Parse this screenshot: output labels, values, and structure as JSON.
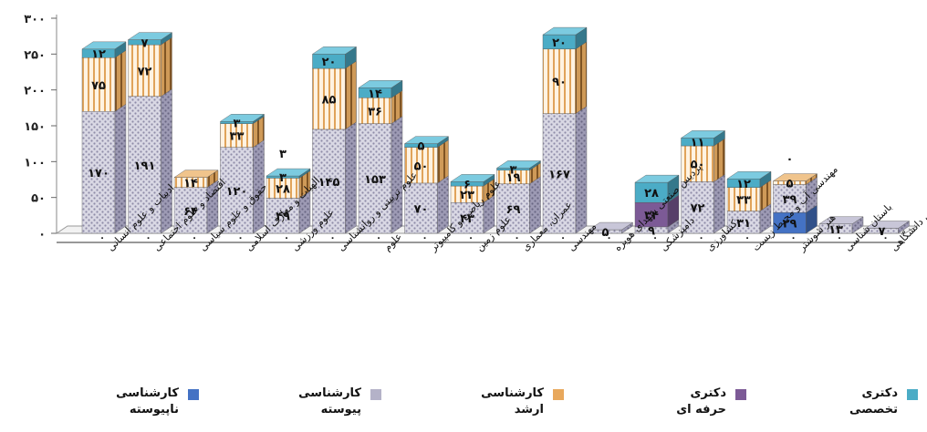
{
  "chart_data": {
    "type": "bar",
    "stacked": true,
    "three_d": true,
    "categories": [
      "ادبیات و علوم انسانی",
      "اقتصاد و علوم اجتماعی",
      "حقوق و علوم سیاسی",
      "الهیات و معارف اسلامی",
      "علوم ورزشی",
      "علوم تربیتی و روانشناسی",
      "علوم",
      "علوم ریاضی و کامپیوتر",
      "علوم زمین",
      "عمران، معماری",
      "مهندسی",
      "پردیس صنعتی شهدای هویزه",
      "دامپزشکی",
      "کشاورزی",
      "مهندسی آب و محیط زیست",
      "هنر شوشتر",
      "باستان شناسی",
      "پردیس دانشگاهی"
    ],
    "series": [
      {
        "name": "کارشناسی ناپیوسته",
        "color": "#4472c4",
        "values": [
          0,
          0,
          0,
          0,
          0,
          0,
          0,
          0,
          0,
          0,
          0,
          0,
          0,
          0,
          0,
          29,
          0,
          0
        ]
      },
      {
        "name": "کارشناسی پیوسته",
        "color": "#b4b2c8",
        "values": [
          170,
          191,
          64,
          120,
          49,
          145,
          153,
          70,
          43,
          69,
          167,
          5,
          9,
          72,
          31,
          39,
          13,
          7
        ]
      },
      {
        "name": "کارشناسی ارشد",
        "color": "#e8a85c",
        "values": [
          75,
          72,
          14,
          33,
          28,
          85,
          36,
          50,
          23,
          19,
          90,
          0,
          0,
          50,
          33,
          5,
          0,
          0
        ]
      },
      {
        "name": "دکتری حرفه ای",
        "color": "#7c5a96",
        "values": [
          0,
          0,
          0,
          0,
          0,
          0,
          0,
          0,
          0,
          0,
          0,
          0,
          34,
          0,
          0,
          0,
          0,
          0
        ]
      },
      {
        "name": "دکتری تخصصی",
        "color": "#4bacc6",
        "values": [
          12,
          7,
          0,
          3,
          3,
          20,
          14,
          5,
          6,
          3,
          20,
          0,
          28,
          11,
          12,
          0,
          0,
          0
        ]
      }
    ],
    "extra_labels": [
      {
        "category_index": 4,
        "text": "۳"
      },
      {
        "category_index": 15,
        "text": "۰"
      }
    ],
    "zero_label": "۰",
    "ylim": [
      0,
      300
    ],
    "yticks": [
      "۰",
      "۵۰",
      "۱۰۰",
      "۱۵۰",
      "۲۰۰",
      "۲۵۰",
      "۳۰۰"
    ],
    "ytick_values": [
      0,
      50,
      100,
      150,
      200,
      250,
      300
    ],
    "legend_position": "bottom",
    "grid": false
  },
  "legend": [
    {
      "line1": "کارشناسی",
      "line2": "ناپیوسته",
      "color": "#4472c4"
    },
    {
      "line1": "کارشناسی",
      "line2": "پیوسته",
      "color": "#b4b2c8"
    },
    {
      "line1": "کارشناسی",
      "line2": "ارشد",
      "color": "#e8a85c"
    },
    {
      "line1": "دکتری",
      "line2": "حرفه ای",
      "color": "#7c5a96"
    },
    {
      "line1": "دکتری",
      "line2": "تخصصی",
      "color": "#4bacc6"
    }
  ]
}
